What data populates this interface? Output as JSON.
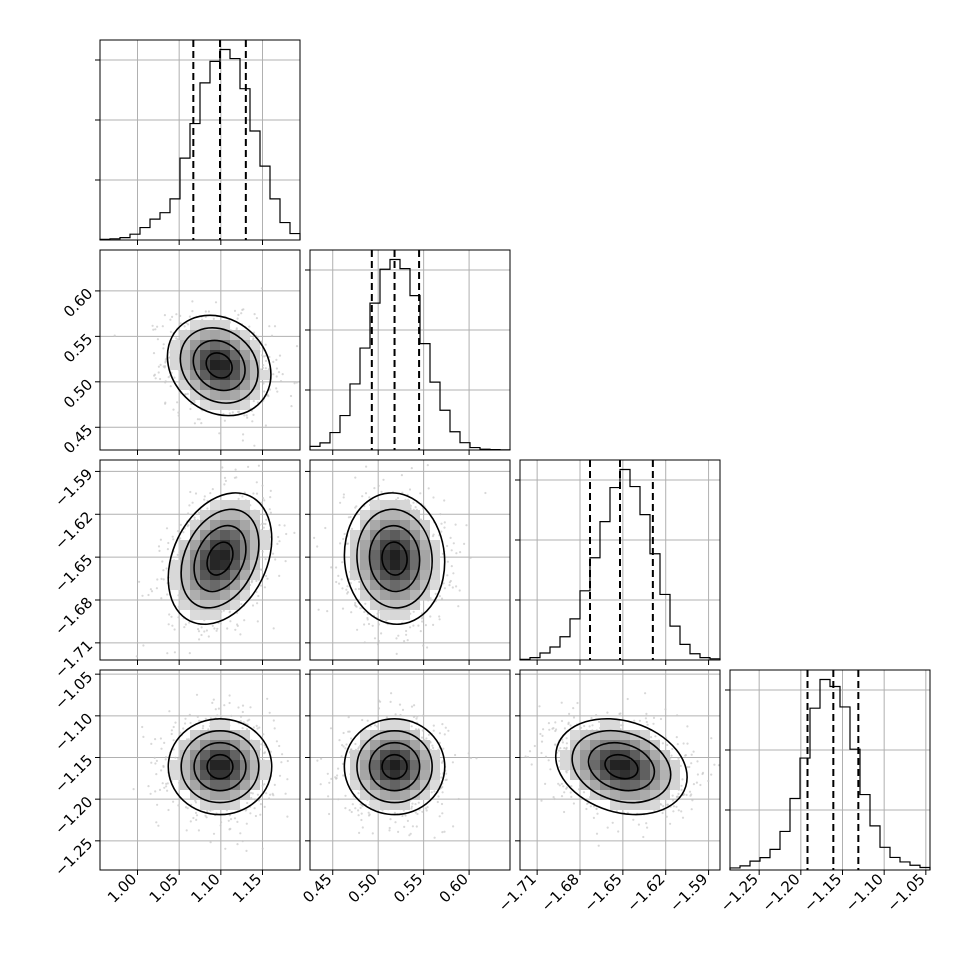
{
  "chart_data": {
    "type": "corner",
    "variables": [
      {
        "range": [
          0.955,
          1.195
        ],
        "ticks": [
          1.0,
          1.05,
          1.1,
          1.15
        ],
        "tick_labels": [
          "1.00",
          "1.05",
          "1.10",
          "1.15"
        ],
        "quantiles": [
          1.067,
          1.099,
          1.13
        ],
        "hist": {
          "edges": [
            0.955,
            0.967,
            0.979,
            0.991,
            1.003,
            1.015,
            1.027,
            1.039,
            1.051,
            1.063,
            1.075,
            1.087,
            1.099,
            1.111,
            1.123,
            1.135,
            1.147,
            1.159,
            1.171,
            1.183,
            1.195
          ],
          "heights": [
            0.3,
            0.6,
            1.2,
            2.9,
            6.2,
            10.4,
            13.6,
            20.5,
            40.8,
            58.0,
            78.3,
            89.0,
            94.9,
            90.4,
            75.4,
            54.3,
            36.8,
            20.5,
            8.7,
            3.2
          ]
        }
      },
      {
        "range": [
          0.425,
          0.645
        ],
        "ticks": [
          0.45,
          0.5,
          0.55,
          0.6
        ],
        "tick_labels": [
          "0.45",
          "0.50",
          "0.55",
          "0.60"
        ],
        "quantiles": [
          0.493,
          0.518,
          0.545
        ],
        "hist": {
          "edges": [
            0.425,
            0.436,
            0.447,
            0.458,
            0.469,
            0.48,
            0.491,
            0.502,
            0.513,
            0.524,
            0.535,
            0.546,
            0.557,
            0.568,
            0.579,
            0.59,
            0.601,
            0.612,
            0.623,
            0.634,
            0.645
          ],
          "heights": [
            1.8,
            3.5,
            8.6,
            17.0,
            32.6,
            50.3,
            72.5,
            89.2,
            94.0,
            89.5,
            76.2,
            52.5,
            33.5,
            19.6,
            9.0,
            3.6,
            1.2,
            0.4,
            0.2,
            0.1
          ]
        }
      },
      {
        "range": [
          -1.722,
          -1.582
        ],
        "ticks": [
          -1.71,
          -1.68,
          -1.65,
          -1.62,
          -1.59
        ],
        "tick_labels": [
          "−1.71",
          "−1.68",
          "−1.65",
          "−1.62",
          "−1.59"
        ],
        "quantiles": [
          -1.673,
          -1.652,
          -1.629
        ],
        "hist": {
          "edges": [
            -1.722,
            -1.715,
            -1.708,
            -1.701,
            -1.694,
            -1.687,
            -1.68,
            -1.673,
            -1.666,
            -1.659,
            -1.652,
            -1.645,
            -1.638,
            -1.631,
            -1.624,
            -1.617,
            -1.61,
            -1.603,
            -1.596,
            -1.589,
            -1.582
          ],
          "heights": [
            0.3,
            1.2,
            3.5,
            6.5,
            11.6,
            20.5,
            34.5,
            51.0,
            69.0,
            86.0,
            95.0,
            86.5,
            72.5,
            53.0,
            32.7,
            16.9,
            7.8,
            3.1,
            1.2,
            0.6
          ]
        }
      },
      {
        "range": [
          -1.285,
          -1.045
        ],
        "ticks": [
          -1.25,
          -1.2,
          -1.15,
          -1.1,
          -1.05
        ],
        "tick_labels": [
          "−1.25",
          "−1.20",
          "−1.15",
          "−1.10",
          "−1.05"
        ],
        "quantiles": [
          -1.192,
          -1.161,
          -1.131
        ],
        "hist": {
          "edges": [
            -1.285,
            -1.273,
            -1.261,
            -1.249,
            -1.237,
            -1.225,
            -1.213,
            -1.201,
            -1.189,
            -1.177,
            -1.165,
            -1.153,
            -1.141,
            -1.129,
            -1.117,
            -1.105,
            -1.093,
            -1.081,
            -1.069,
            -1.057,
            -1.045
          ],
          "heights": [
            1.0,
            2.0,
            4.3,
            6.0,
            10.0,
            18.7,
            34.7,
            54.3,
            78.5,
            92.4,
            89.0,
            79.1,
            58.6,
            36.6,
            21.4,
            11.0,
            6.1,
            3.9,
            2.3,
            1.2
          ]
        }
      }
    ],
    "pairs": [
      {
        "i": 1,
        "j": 0,
        "mean": [
          1.098,
          0.518
        ],
        "sd": [
          0.027,
          0.024
        ],
        "rho": -0.18
      },
      {
        "i": 2,
        "j": 0,
        "mean": [
          1.099,
          -1.651
        ],
        "sd": [
          0.027,
          0.02
        ],
        "rho": 0.3
      },
      {
        "i": 2,
        "j": 1,
        "mean": [
          0.518,
          -1.651
        ],
        "sd": [
          0.024,
          0.02
        ],
        "rho": -0.05
      },
      {
        "i": 3,
        "j": 0,
        "mean": [
          1.099,
          -1.161
        ],
        "sd": [
          0.027,
          0.025
        ],
        "rho": 0.0
      },
      {
        "i": 3,
        "j": 1,
        "mean": [
          0.518,
          -1.161
        ],
        "sd": [
          0.024,
          0.025
        ],
        "rho": 0.0
      },
      {
        "i": 3,
        "j": 2,
        "mean": [
          -1.651,
          -1.161
        ],
        "sd": [
          0.02,
          0.025
        ],
        "rho": -0.22
      }
    ],
    "colors": {
      "line": "#000000",
      "grid": "#b0b0b0",
      "points": "#c8c8c8"
    },
    "grid": true
  }
}
